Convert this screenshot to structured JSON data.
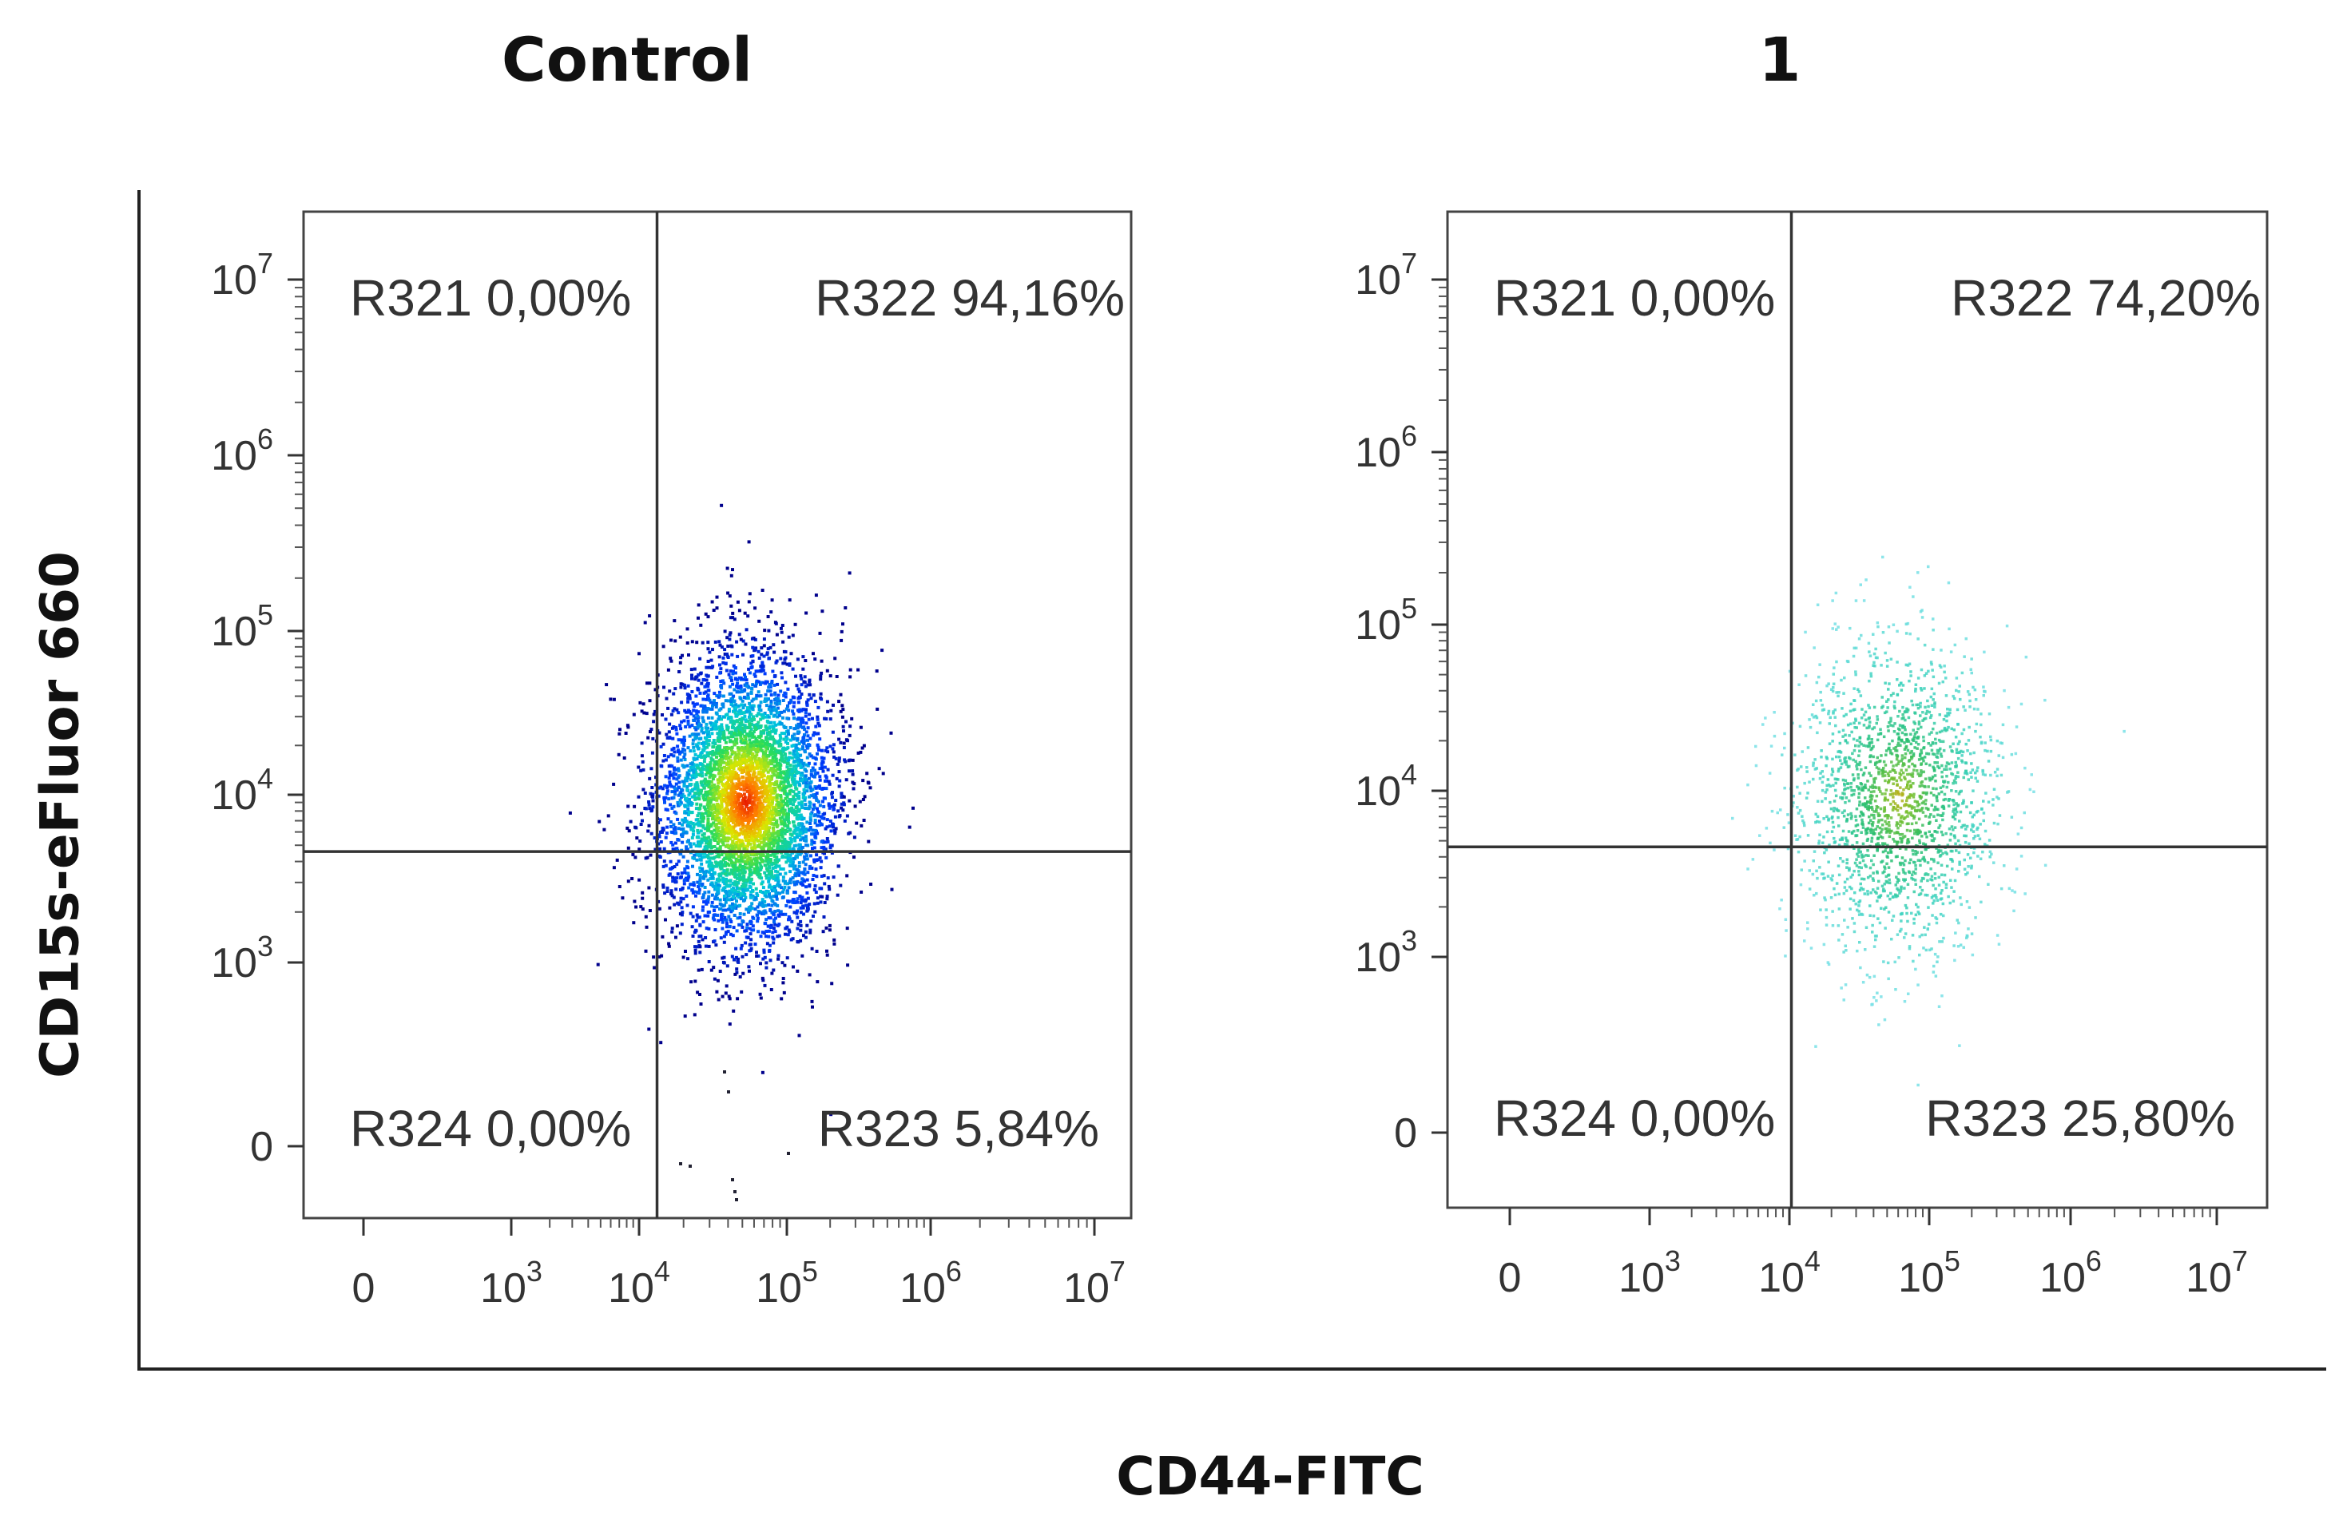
{
  "chart_data": [
    {
      "type": "scatter",
      "title": "Control",
      "xlabel": "CD44-FITC",
      "ylabel": "CD15s-eFluor 660",
      "x_ticks": [
        "0",
        "10",
        "10",
        "10",
        "10",
        "10"
      ],
      "x_tick_exps": [
        "",
        "3",
        "4",
        "5",
        "6",
        "7"
      ],
      "y_ticks": [
        "0",
        "10",
        "10",
        "10",
        "10",
        "10"
      ],
      "y_tick_exps": [
        "",
        "3",
        "4",
        "5",
        "6",
        "7"
      ],
      "gates": [
        {
          "label": "R321 0,00%",
          "quadrant": "top-left",
          "percent": 0.0
        },
        {
          "label": "R322 94,16%",
          "quadrant": "top-right",
          "percent": 94.16
        },
        {
          "label": "R324 0,00%",
          "quadrant": "bottom-left",
          "percent": 0.0
        },
        {
          "label": "R323 5,84%",
          "quadrant": "bottom-right",
          "percent": 5.84
        }
      ],
      "gate_x_log10": 4,
      "gate_y_log10": 3.65,
      "population": {
        "center_x_log10": 4.6,
        "center_y_log10": 3.95,
        "spread_x": 0.3,
        "spread_y": 0.42,
        "density": "high",
        "colormap": "jet"
      }
    },
    {
      "type": "scatter",
      "title": "1",
      "xlabel": "CD44-FITC",
      "ylabel": "CD15s-eFluor 660",
      "x_ticks": [
        "0",
        "10",
        "10",
        "10",
        "10",
        "10"
      ],
      "x_tick_exps": [
        "",
        "3",
        "4",
        "5",
        "6",
        "7"
      ],
      "y_ticks": [
        "0",
        "10",
        "10",
        "10",
        "10",
        "10"
      ],
      "y_tick_exps": [
        "",
        "3",
        "4",
        "5",
        "6",
        "7"
      ],
      "gates": [
        {
          "label": "R321 0,00%",
          "quadrant": "top-left",
          "percent": 0.0
        },
        {
          "label": "R322 74,20%",
          "quadrant": "top-right",
          "percent": 74.2
        },
        {
          "label": "R324 0,00%",
          "quadrant": "bottom-left",
          "percent": 0.0
        },
        {
          "label": "R323 25,80%",
          "quadrant": "bottom-right",
          "percent": 25.8
        }
      ],
      "gate_x_log10": 4,
      "gate_y_log10": 3.65,
      "population": {
        "center_x_log10": 4.75,
        "center_y_log10": 3.95,
        "spread_x": 0.35,
        "spread_y": 0.45,
        "density": "low",
        "colormap": "cyan-green"
      }
    }
  ],
  "axis_titles": {
    "x": "CD44-FITC",
    "y": "CD15s-eFluor 660"
  },
  "panel_titles": [
    "Control",
    "1"
  ]
}
